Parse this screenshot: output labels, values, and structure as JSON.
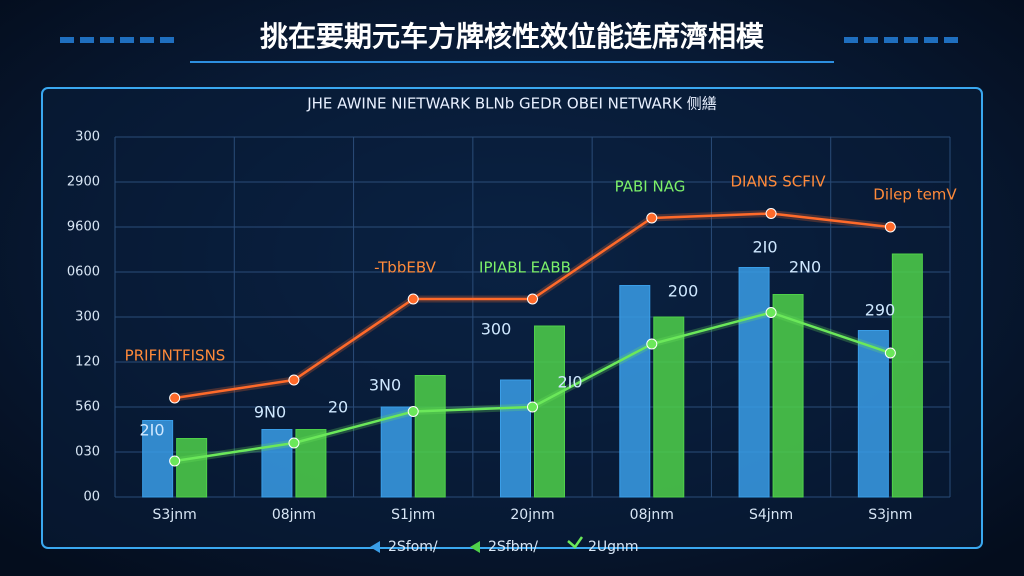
{
  "chart_data": {
    "type": "bar",
    "title": "挑在要期元车方牌核性效位能连席濟相模",
    "subtitle": "JHE AWINE NIETWARK BLNb GEDR OBEI NETWARK 侧繕",
    "categories": [
      "S3jnm",
      "08jnm",
      "S1jnm",
      "20jnm",
      "08jnm",
      "S4jnm",
      "S3jnm"
    ],
    "series": [
      {
        "name": "2Sfom/",
        "color": "#3a9ee8",
        "type": "bar",
        "values": [
          1.7,
          1.5,
          2.0,
          2.6,
          4.7,
          5.1,
          3.7
        ]
      },
      {
        "name": "2Sfbm/",
        "color": "#4fd14a",
        "type": "bar",
        "values": [
          1.3,
          1.5,
          2.7,
          3.8,
          4.0,
          4.5,
          5.4
        ]
      },
      {
        "name": "2Ugnm",
        "color": "#6be85a",
        "type": "line",
        "values": [
          0.8,
          1.2,
          1.9,
          2.0,
          3.4,
          4.1,
          3.2
        ]
      },
      {
        "color": "#ff6a2a",
        "type": "line",
        "values": [
          2.2,
          2.6,
          4.4,
          4.4,
          6.2,
          6.3,
          6.0
        ]
      }
    ],
    "ylim": [
      0,
      8
    ],
    "yticks": [
      {
        "value": 0,
        "label": "00"
      },
      {
        "value": 1,
        "label": "030"
      },
      {
        "value": 2,
        "label": "560"
      },
      {
        "value": 3,
        "label": "120"
      },
      {
        "value": 4,
        "label": "300"
      },
      {
        "value": 5,
        "label": "0600"
      },
      {
        "value": 6,
        "label": "9600"
      },
      {
        "value": 7,
        "label": "2900"
      },
      {
        "value": 8,
        "label": "300"
      }
    ],
    "grid": true,
    "annotations": [
      "PRIFINTFISNS",
      "-TbbEBV",
      "IPIABL EABB",
      "PABI NAG",
      "DIANS SCFIV",
      "Dilep temV",
      "2I0",
      "9N0",
      "20",
      "3N0",
      "2I0",
      "200",
      "2I0",
      "2N0",
      "300",
      "290"
    ]
  }
}
